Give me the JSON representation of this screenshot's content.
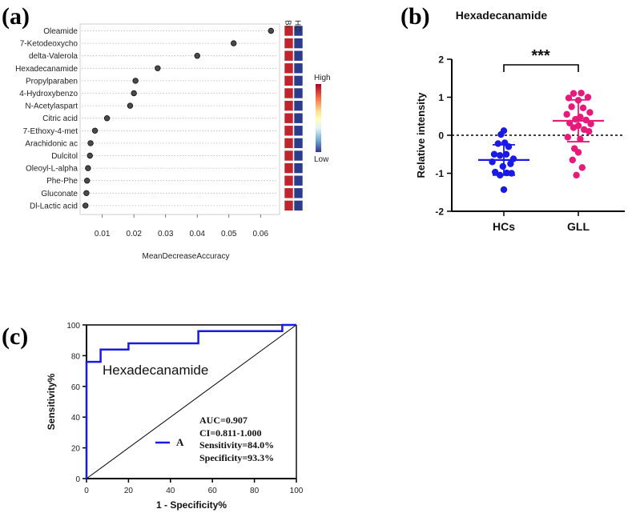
{
  "panels": {
    "a": "(a)",
    "b": "(b)",
    "c": "(c)"
  },
  "chart_data": [
    {
      "type": "scatter",
      "title": "",
      "xlabel": "MeanDecreaseAccuracy",
      "xlim": [
        0.003,
        0.066
      ],
      "xticks": [
        "0.01",
        "0.02",
        "0.03",
        "0.04",
        "0.05",
        "0.06"
      ],
      "features": [
        "Oleamide",
        "7-Ketodeoxycho",
        "delta-Valerola",
        "Hexadecanamide",
        "Propylparaben",
        "4-Hydroxybenzo",
        "N-Acetylaspart",
        "Citric acid",
        "7-Ethoxy-4-met",
        "Arachidonic ac",
        "Dulcitol",
        "Oleoyl-L-alpha",
        "Phe-Phe",
        "Gluconate",
        "Dl-Lactic acid"
      ],
      "values": [
        0.0633,
        0.0515,
        0.04,
        0.0275,
        0.0205,
        0.02,
        0.0188,
        0.0115,
        0.0077,
        0.0063,
        0.0061,
        0.0055,
        0.0052,
        0.005,
        0.0047
      ],
      "heatmap_columns": [
        "BI",
        "HC"
      ],
      "heatmap_colors": {
        "high": "#c0242c",
        "low": "#2c3c8c"
      },
      "legend": {
        "high": "High",
        "low": "Low",
        "colors": [
          "#a50026",
          "#f46d43",
          "#fee090",
          "#ffffbf",
          "#e0f3f8",
          "#74add1",
          "#313695"
        ]
      }
    },
    {
      "type": "scatter",
      "title": "Hexadecanamide",
      "ylabel": "Relative intensity",
      "ylim": [
        -2,
        2
      ],
      "yticks": [
        "-2",
        "-1",
        "0",
        "1",
        "2"
      ],
      "categories": [
        "HCs",
        "GLL"
      ],
      "significance": "***",
      "series": [
        {
          "name": "HCs",
          "color": "#1a1ae6",
          "mean": -0.65,
          "sd": 0.4,
          "points": [
            [
              0.0,
              0.12
            ],
            [
              -0.06,
              0.02
            ],
            [
              -0.12,
              -0.22
            ],
            [
              0.02,
              -0.2
            ],
            [
              0.1,
              -0.3
            ],
            [
              -0.2,
              -0.5
            ],
            [
              -0.08,
              -0.53
            ],
            [
              0.05,
              -0.5
            ],
            [
              0.2,
              -0.62
            ],
            [
              -0.24,
              -0.7
            ],
            [
              0.14,
              -0.75
            ],
            [
              -0.02,
              -0.82
            ],
            [
              -0.18,
              -0.97
            ],
            [
              0.06,
              -0.99
            ],
            [
              0.16,
              -1.0
            ],
            [
              -0.08,
              -1.05
            ],
            [
              0.0,
              -1.43
            ]
          ]
        },
        {
          "name": "GLL",
          "color": "#e8197a",
          "mean": 0.38,
          "sd": 0.55,
          "points": [
            [
              -0.1,
              1.1
            ],
            [
              0.06,
              1.11
            ],
            [
              0.2,
              1.0
            ],
            [
              -0.2,
              0.98
            ],
            [
              0.0,
              0.92
            ],
            [
              -0.14,
              0.75
            ],
            [
              0.1,
              0.72
            ],
            [
              0.24,
              0.6
            ],
            [
              -0.24,
              0.55
            ],
            [
              0.04,
              0.48
            ],
            [
              -0.06,
              0.42
            ],
            [
              0.16,
              0.4
            ],
            [
              -0.18,
              0.32
            ],
            [
              0.26,
              0.3
            ],
            [
              0.0,
              0.25
            ],
            [
              -0.1,
              0.2
            ],
            [
              0.12,
              0.15
            ],
            [
              0.22,
              0.1
            ],
            [
              -0.22,
              -0.05
            ],
            [
              0.04,
              -0.1
            ],
            [
              -0.08,
              -0.35
            ],
            [
              0.0,
              -0.45
            ],
            [
              -0.12,
              -0.65
            ],
            [
              0.08,
              -0.85
            ],
            [
              -0.04,
              -1.05
            ]
          ]
        }
      ]
    },
    {
      "type": "line",
      "title": "Hexadecanamide",
      "xlabel": "1 - Specificity%",
      "ylabel": "Sensitivity%",
      "xlim": [
        0,
        100
      ],
      "ylim": [
        0,
        100
      ],
      "xticks": [
        "0",
        "20",
        "40",
        "60",
        "80",
        "100"
      ],
      "yticks": [
        "0",
        "20",
        "40",
        "60",
        "80",
        "100"
      ],
      "series": [
        {
          "name": "A",
          "color": "#1a1ae6",
          "x": [
            0,
            0,
            6.7,
            6.7,
            20,
            20,
            53.3,
            53.3,
            93.3,
            93.3,
            100
          ],
          "y": [
            0,
            76,
            76,
            84,
            84,
            88,
            88,
            96,
            96,
            100,
            100
          ]
        }
      ],
      "reference_line": [
        [
          0,
          0
        ],
        [
          100,
          100
        ]
      ],
      "stats": {
        "auc": "AUC=0.907",
        "ci": "CI=0.811-1.000",
        "sensitivity": "Sensitivity=84.0%",
        "specificity": "Specificity=93.3%"
      }
    }
  ]
}
